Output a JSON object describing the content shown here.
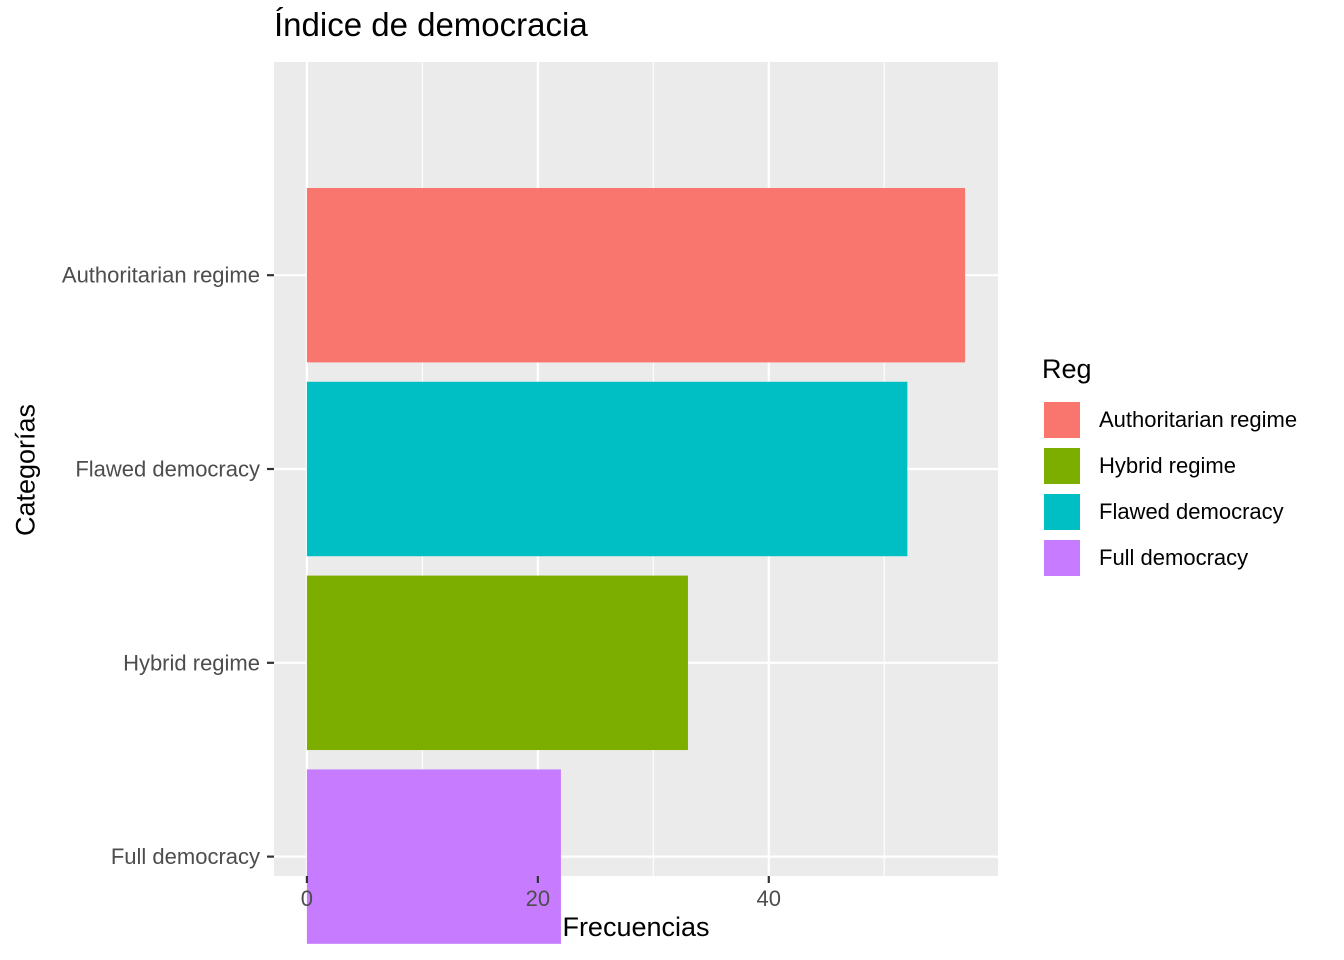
{
  "title": "Índice de democracia",
  "legend": {
    "title": "Reg",
    "items": [
      {
        "label": "Authoritarian regime",
        "color": "#F8766D"
      },
      {
        "label": "Hybrid regime",
        "color": "#7CAE00"
      },
      {
        "label": "Flawed democracy",
        "color": "#00BFC4"
      },
      {
        "label": "Full democracy",
        "color": "#C77CFF"
      }
    ]
  },
  "chart_data": {
    "type": "bar",
    "orientation": "horizontal",
    "title": "Índice de democracia",
    "xlabel": "Frecuencias",
    "ylabel": "Categorías",
    "categories": [
      "Authoritarian regime",
      "Flawed democracy",
      "Hybrid regime",
      "Full democracy"
    ],
    "values": [
      57,
      52,
      33,
      22
    ],
    "colors": [
      "#F8766D",
      "#00BFC4",
      "#7CAE00",
      "#C77CFF"
    ],
    "xticks": [
      0,
      20,
      40
    ],
    "xlim": [
      -2.85,
      59.85
    ],
    "grid": true,
    "legend_position": "right"
  }
}
